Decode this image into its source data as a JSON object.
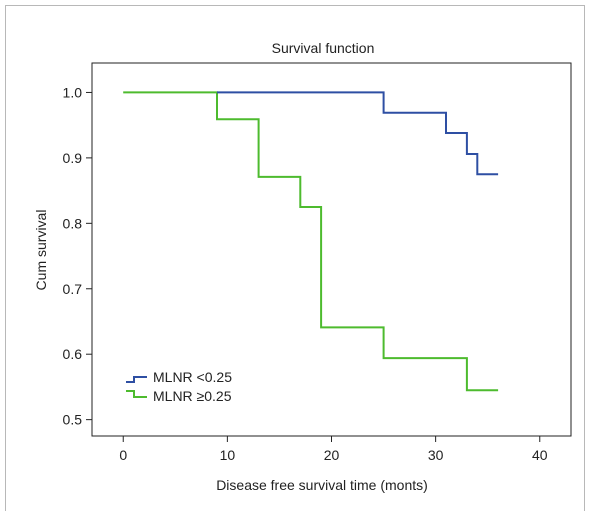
{
  "chart_data": {
    "type": "line",
    "title": "Survival function",
    "xlabel": "Disease free survival time (monts)",
    "ylabel": "Cum survival",
    "xlim": [
      -3,
      43
    ],
    "ylim": [
      0.475,
      1.045
    ],
    "xticks": [
      0,
      10,
      20,
      30,
      40
    ],
    "yticks": [
      0.5,
      0.6,
      0.7,
      0.8,
      0.9,
      1.0
    ],
    "ytick_labels": [
      "0.5",
      "0.6",
      "0.7",
      "0.8",
      "0.9",
      "1.0"
    ],
    "grid": false,
    "legend_position": "bottom-left",
    "step": true,
    "series": [
      {
        "name": "MLNR <0.25",
        "color": "#2e4fa3",
        "x": [
          9,
          25,
          25,
          31,
          31,
          33,
          33,
          34,
          34,
          36
        ],
        "y": [
          1.0,
          1.0,
          0.969,
          0.969,
          0.938,
          0.938,
          0.906,
          0.906,
          0.875,
          0.875
        ]
      },
      {
        "name": "MLNR ≥0.25",
        "color": "#4dbb2e",
        "x": [
          0,
          9,
          9,
          13,
          13,
          17,
          17,
          19,
          19,
          25,
          25,
          33,
          33,
          36
        ],
        "y": [
          1.0,
          1.0,
          0.959,
          0.959,
          0.871,
          0.871,
          0.825,
          0.825,
          0.641,
          0.641,
          0.594,
          0.594,
          0.545,
          0.545
        ]
      }
    ]
  }
}
